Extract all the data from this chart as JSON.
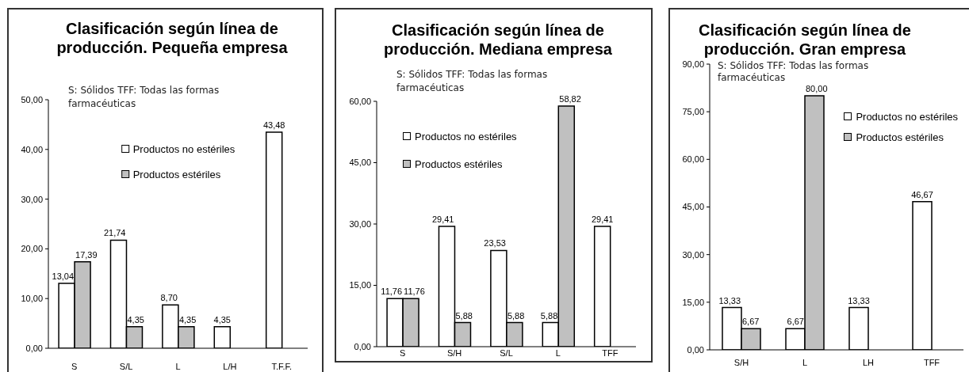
{
  "chart_data": [
    {
      "type": "bar",
      "title": "Clasificación según línea de producción. Pequeña empresa",
      "annotations": [
        "S: Sólidos TFF: Todas las formas farmacéuticas"
      ],
      "categories": [
        "S",
        "S/L",
        "L",
        "L/H",
        "T.F.F."
      ],
      "series": [
        {
          "name": "Productos no estériles",
          "color": "#ffffff",
          "values": [
            13.04,
            21.74,
            8.7,
            4.35,
            43.48
          ],
          "value_labels": [
            "13,04",
            "21,74",
            "8,70",
            "4,35",
            "43,48"
          ]
        },
        {
          "name": "Productos estériles",
          "color": "#c0c0c0",
          "values": [
            17.39,
            4.35,
            4.35,
            null,
            null
          ],
          "value_labels": [
            "17,39",
            "4,35",
            "4,35",
            null,
            null
          ]
        }
      ],
      "ylim": [
        0,
        50
      ],
      "yticks": [
        {
          "value": 0,
          "label": "0,00"
        },
        {
          "value": 10,
          "label": "10,00"
        },
        {
          "value": 20,
          "label": "20,00"
        },
        {
          "value": 30,
          "label": "30,00"
        },
        {
          "value": 40,
          "label": "40,00"
        },
        {
          "value": 50,
          "label": "50,00"
        }
      ],
      "legend": "top"
    },
    {
      "type": "bar",
      "title": "Clasificación según línea de producción. Mediana empresa",
      "annotations": [
        "S: Sólidos TFF: Todas las formas farmacéuticas"
      ],
      "categories": [
        "S",
        "S/H",
        "S/L",
        "L",
        "TFF"
      ],
      "series": [
        {
          "name": "Productos no estériles",
          "color": "#ffffff",
          "values": [
            11.76,
            29.41,
            23.53,
            5.88,
            29.41
          ],
          "value_labels": [
            "11,76",
            "29,41",
            "23,53",
            "5,88",
            "29,41"
          ]
        },
        {
          "name": "Productos estériles",
          "color": "#c0c0c0",
          "values": [
            11.76,
            5.88,
            5.88,
            58.82,
            null
          ],
          "value_labels": [
            "11,76",
            "5,88",
            "5,88",
            "58,82",
            null
          ]
        }
      ],
      "ylim": [
        0,
        60
      ],
      "yticks": [
        {
          "value": 0,
          "label": "0,00"
        },
        {
          "value": 15,
          "label": "15,00"
        },
        {
          "value": 30,
          "label": "30,00"
        },
        {
          "value": 45,
          "label": "45,00"
        },
        {
          "value": 60,
          "label": "60,00"
        }
      ],
      "legend": "top left"
    },
    {
      "type": "bar",
      "title": "Clasificación según línea de producción. Gran empresa",
      "annotations": [
        "S: Sólidos TFF: Todas las formas farmacéuticas"
      ],
      "categories": [
        "S/H",
        "L",
        "LH",
        "TFF"
      ],
      "series": [
        {
          "name": "Productos no estériles",
          "color": "#ffffff",
          "values": [
            13.33,
            6.67,
            13.33,
            46.67
          ],
          "value_labels": [
            "13,33",
            "6,67",
            "13,33",
            "46,67"
          ]
        },
        {
          "name": "Productos estériles",
          "color": "#c0c0c0",
          "values": [
            6.67,
            80.0,
            null,
            null
          ],
          "value_labels": [
            "6,67",
            "80,00",
            null,
            null
          ]
        }
      ],
      "ylim": [
        0,
        90
      ],
      "yticks": [
        {
          "value": 0,
          "label": "0,00"
        },
        {
          "value": 15,
          "label": "15,00"
        },
        {
          "value": 30,
          "label": "30,00"
        },
        {
          "value": 45,
          "label": "45,00"
        },
        {
          "value": 60,
          "label": "60,00"
        },
        {
          "value": 75,
          "label": "75,00"
        },
        {
          "value": 90,
          "label": "90,00"
        }
      ],
      "legend": "top right"
    }
  ]
}
